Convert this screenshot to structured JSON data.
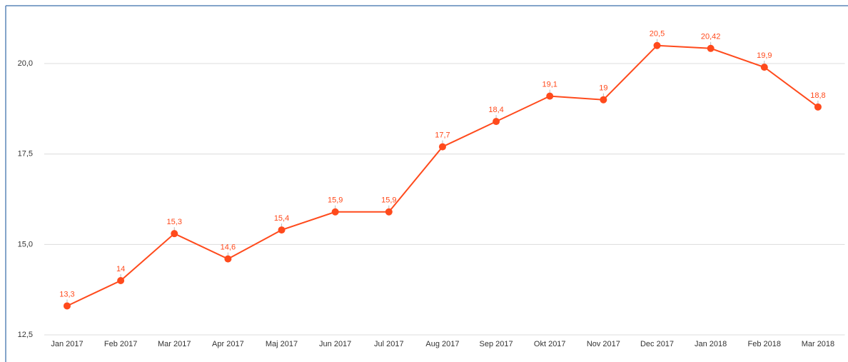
{
  "chart_data": {
    "type": "line",
    "categories": [
      "Jan 2017",
      "Feb 2017",
      "Mar 2017",
      "Apr 2017",
      "Maj 2017",
      "Jun 2017",
      "Jul 2017",
      "Aug 2017",
      "Sep 2017",
      "Okt 2017",
      "Nov 2017",
      "Dec 2017",
      "Jan 2018",
      "Feb 2018",
      "Mar 2018"
    ],
    "series": [
      {
        "color": "#ff4a1c",
        "values": [
          13.3,
          14,
          15.3,
          14.6,
          15.4,
          15.9,
          15.9,
          17.7,
          18.4,
          19.1,
          19,
          20.5,
          20.42,
          19.9,
          18.8
        ],
        "value_labels": [
          "13,3",
          "14",
          "15,3",
          "14,6",
          "15,4",
          "15,9",
          "15,9",
          "17,7",
          "18,4",
          "19,1",
          "19",
          "20,5",
          "20,42",
          "19,9",
          "18,8"
        ]
      }
    ],
    "ylim": [
      12.5,
      21.6
    ],
    "yticks": [
      {
        "value": 12.5,
        "label": "12,5"
      },
      {
        "value": 15,
        "label": "15,0"
      },
      {
        "value": 17.5,
        "label": "17,5"
      },
      {
        "value": 20,
        "label": "20,0"
      }
    ],
    "grid": true
  }
}
